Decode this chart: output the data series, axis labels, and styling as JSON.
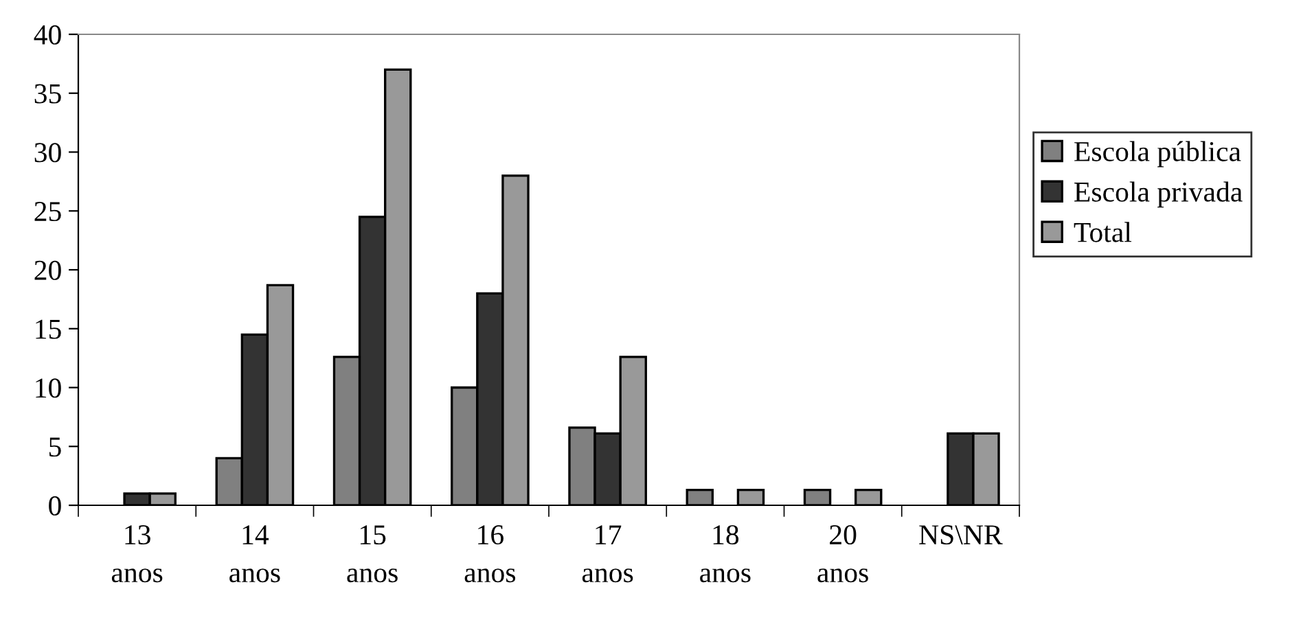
{
  "chart_data": {
    "type": "bar",
    "categories": [
      "13\nanos",
      "14\nanos",
      "15\nanos",
      "16\nanos",
      "17\nanos",
      "18\nanos",
      "20\nanos",
      "NS\\NR"
    ],
    "series": [
      {
        "name": "Escola pública",
        "color": "#808080",
        "values": [
          0,
          4,
          12.6,
          10,
          6.6,
          1.3,
          1.3,
          0
        ]
      },
      {
        "name": "Escola privada",
        "color": "#333333",
        "values": [
          1,
          14.5,
          24.5,
          18,
          6.1,
          0,
          0,
          6.1
        ]
      },
      {
        "name": "Total",
        "color": "#999999",
        "values": [
          1,
          18.7,
          37,
          28,
          12.6,
          1.3,
          1.3,
          6.1
        ]
      }
    ],
    "ylim": [
      0,
      40
    ],
    "yticks": [
      0,
      5,
      10,
      15,
      20,
      25,
      30,
      35,
      40
    ],
    "grid": false,
    "legend": "right"
  }
}
